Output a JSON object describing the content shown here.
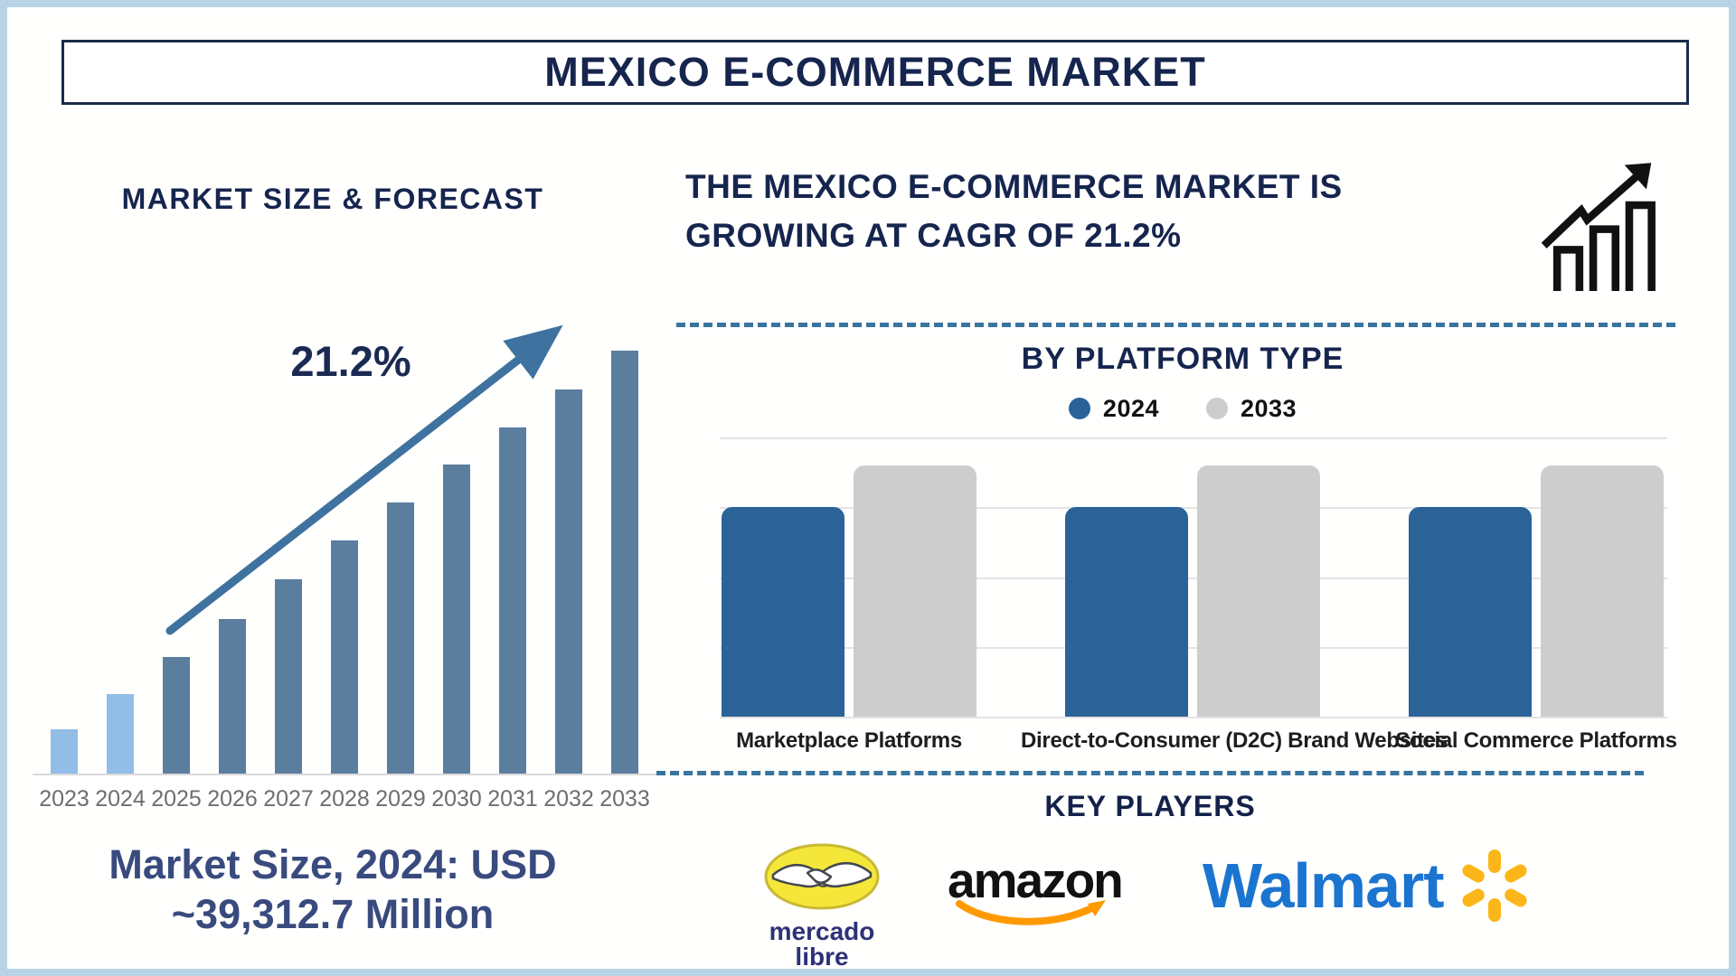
{
  "page": {
    "title": "MEXICO E-COMMERCE MARKET",
    "frame_color": "#b9d3e6",
    "background": "#ffffff",
    "accent_navy": "#16254e"
  },
  "left_panel": {
    "heading": "MARKET SIZE & FORECAST",
    "cagr_annotation": "21.2%",
    "market_size_line1": "Market Size, 2024: USD",
    "market_size_line2": "~39,312.7 Million",
    "trend_arrow_color": "#3f729f"
  },
  "right_panel": {
    "heading_line1": "THE MEXICO E-COMMERCE MARKET IS",
    "heading_line2": "GROWING AT CAGR OF 21.2%",
    "growth_icon": "bar-chart-trend-icon",
    "divider_color": "#39749f",
    "platform_section_title": "BY PLATFORM TYPE",
    "key_players_title": "KEY PLAYERS",
    "players": [
      {
        "name": "mercado libre",
        "text_line1": "mercado",
        "text_line2": "libre",
        "badge_color": "#f5e73a",
        "text_color": "#2d3277",
        "icon": "handshake-icon"
      },
      {
        "name": "amazon",
        "text": "amazon",
        "text_color": "#111111",
        "swoosh_color": "#ff9900",
        "icon": "amazon-smile-arrow-icon"
      },
      {
        "name": "Walmart",
        "text": "Walmart",
        "text_color": "#1b75d0",
        "spark_color": "#fcb61a",
        "icon": "walmart-spark-icon"
      }
    ]
  },
  "chart_data": [
    {
      "id": "market_size_forecast",
      "type": "bar",
      "title": "MARKET SIZE & FORECAST",
      "categories": [
        "2023",
        "2024",
        "2025",
        "2026",
        "2027",
        "2028",
        "2029",
        "2030",
        "2031",
        "2032",
        "2033"
      ],
      "values_relative_pct": [
        10.5,
        18.8,
        27.6,
        36.6,
        45.9,
        55.1,
        64.1,
        73.1,
        81.8,
        90.8,
        100
      ],
      "historical_years": [
        "2023",
        "2024"
      ],
      "historical_color": "#92bde7",
      "forecast_color": "#5b7e9f",
      "annotation": {
        "text": "21.2%",
        "shape": "trend-arrow-up"
      },
      "xlabel": "",
      "ylabel": "",
      "grid": false,
      "axis_note": "no numeric y-axis shown; heights are relative",
      "footnote": "Market Size, 2024: USD ~39,312.7 Million"
    },
    {
      "id": "by_platform_type",
      "type": "bar",
      "title": "BY PLATFORM TYPE",
      "categories": [
        "Marketplace Platforms",
        "Direct-to-Consumer (D2C) Brand Websites",
        "Social Commerce Platforms"
      ],
      "series": [
        {
          "name": "2024",
          "color": "#2b6399",
          "values_relative_pct": [
            75,
            75,
            75
          ]
        },
        {
          "name": "2033",
          "color": "#cdcdcd",
          "values_relative_pct": [
            90,
            90,
            90
          ]
        }
      ],
      "ylim_relative": [
        0,
        100
      ],
      "grid": true,
      "gridline_color": "#e4e4e4",
      "legend_position": "top",
      "axis_note": "no numeric y-axis shown; heights are relative"
    }
  ]
}
